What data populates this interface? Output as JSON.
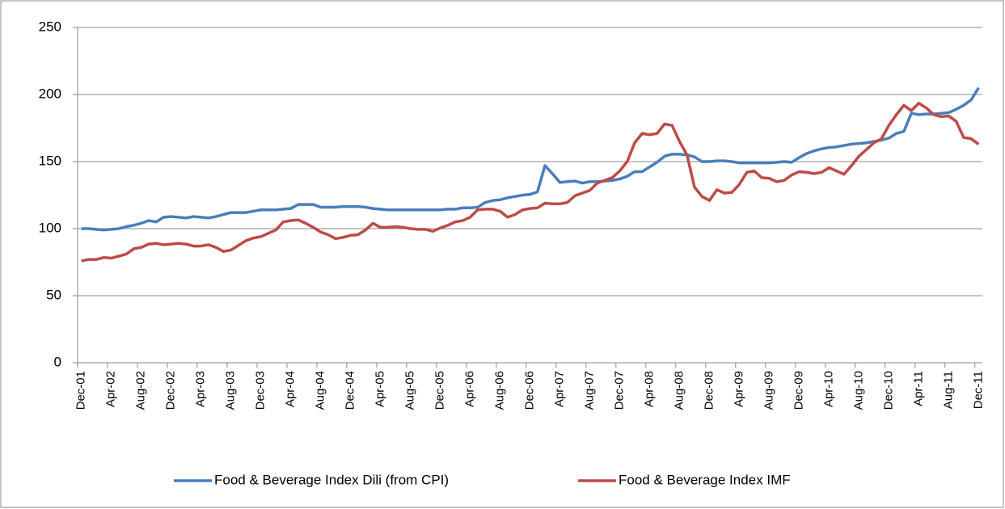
{
  "chart_data": {
    "type": "line",
    "categories": [
      "Dec-01",
      null,
      null,
      null,
      "Apr-02",
      null,
      null,
      null,
      "Aug-02",
      null,
      null,
      null,
      "Dec-02",
      null,
      null,
      null,
      "Apr-03",
      null,
      null,
      null,
      "Aug-03",
      null,
      null,
      null,
      "Dec-03",
      null,
      null,
      null,
      "Apr-04",
      null,
      null,
      null,
      "Aug-04",
      null,
      null,
      null,
      "Dec-04",
      null,
      null,
      null,
      "Apr-05",
      null,
      null,
      null,
      "Aug-05",
      null,
      null,
      null,
      "Dec-05",
      null,
      null,
      null,
      "Apr-06",
      null,
      null,
      null,
      "Aug-06",
      null,
      null,
      null,
      "Dec-06",
      null,
      null,
      null,
      "Apr-07",
      null,
      null,
      null,
      "Aug-07",
      null,
      null,
      null,
      "Dec-07",
      null,
      null,
      null,
      "Apr-08",
      null,
      null,
      null,
      "Aug-08",
      null,
      null,
      null,
      "Dec-08",
      null,
      null,
      null,
      "Apr-09",
      null,
      null,
      null,
      "Aug-09",
      null,
      null,
      null,
      "Dec-09",
      null,
      null,
      null,
      "Apr-10",
      null,
      null,
      null,
      "Aug-10",
      null,
      null,
      null,
      "Dec-10",
      null,
      null,
      null,
      "Apr-11",
      null,
      null,
      null,
      "Aug-11",
      null,
      null,
      null,
      "Dec-11"
    ],
    "series": [
      {
        "name": "Food & Beverage Index Dili (from CPI)",
        "color": "#4a7ebb",
        "values": [
          100,
          100,
          99.5,
          99,
          99.5,
          100,
          101.5,
          102.5,
          104,
          106,
          105,
          108.5,
          109,
          108.5,
          108,
          109,
          108.5,
          108,
          109,
          110.5,
          112,
          112,
          112,
          113,
          114,
          114,
          114,
          114.5,
          115,
          118,
          118,
          118,
          116,
          116,
          116,
          116.5,
          116.5,
          116.5,
          116,
          115,
          114.5,
          114,
          114,
          114,
          114,
          114,
          114,
          114,
          114,
          114.5,
          114.5,
          115.5,
          115.5,
          116,
          119.5,
          121,
          121.5,
          123,
          124,
          125,
          125.5,
          127.5,
          147,
          141,
          134.5,
          135,
          135.5,
          134,
          135,
          135,
          135.5,
          136,
          137,
          139,
          142.5,
          142.5,
          146,
          149.5,
          154,
          155.5,
          155.5,
          155,
          153.5,
          150,
          150,
          150.5,
          150.5,
          150,
          149,
          149,
          149,
          149,
          149,
          149.5,
          150,
          149.5,
          153,
          156,
          158,
          159.5,
          160.5,
          161,
          162,
          163,
          163.5,
          164,
          165,
          166,
          167.5,
          171,
          172.5,
          186,
          185,
          185.5,
          185.5,
          186,
          186.5,
          189,
          192,
          196,
          205
        ]
      },
      {
        "name": "Food & Beverage Index IMF",
        "color": "#be4b48",
        "values": [
          76,
          77,
          77,
          78.5,
          78,
          79.5,
          81,
          85,
          86,
          88.5,
          89,
          88,
          88.5,
          89,
          88.5,
          87,
          87,
          88,
          86,
          83,
          84,
          87.5,
          91,
          93,
          94,
          96.5,
          99,
          105,
          106,
          106.5,
          104,
          101,
          97.5,
          95.5,
          92.5,
          93.5,
          95,
          95.5,
          99,
          104,
          101,
          101,
          101.5,
          101,
          100,
          99.5,
          99.5,
          98,
          100.5,
          102.5,
          105,
          106,
          108.5,
          114,
          114.5,
          114.5,
          113,
          108.5,
          110.5,
          114,
          115,
          115.5,
          119,
          118.5,
          118.5,
          119.5,
          124.5,
          126.5,
          128.5,
          134,
          136,
          138,
          143,
          150,
          164,
          171,
          170,
          171,
          178,
          177,
          165,
          155,
          131,
          124,
          121,
          129,
          126.5,
          127,
          133,
          142,
          143,
          138,
          137.5,
          135,
          136,
          140,
          142.5,
          142,
          141,
          142,
          145.5,
          143,
          140.5,
          147,
          154,
          159,
          164,
          167,
          177,
          185,
          192,
          188,
          193.5,
          190,
          185,
          183.5,
          184,
          180,
          168,
          167,
          163
        ]
      }
    ],
    "ylim": [
      0,
      250
    ],
    "yticks": [
      0,
      50,
      100,
      150,
      200,
      250
    ],
    "grid": true,
    "legend": "bottom"
  }
}
